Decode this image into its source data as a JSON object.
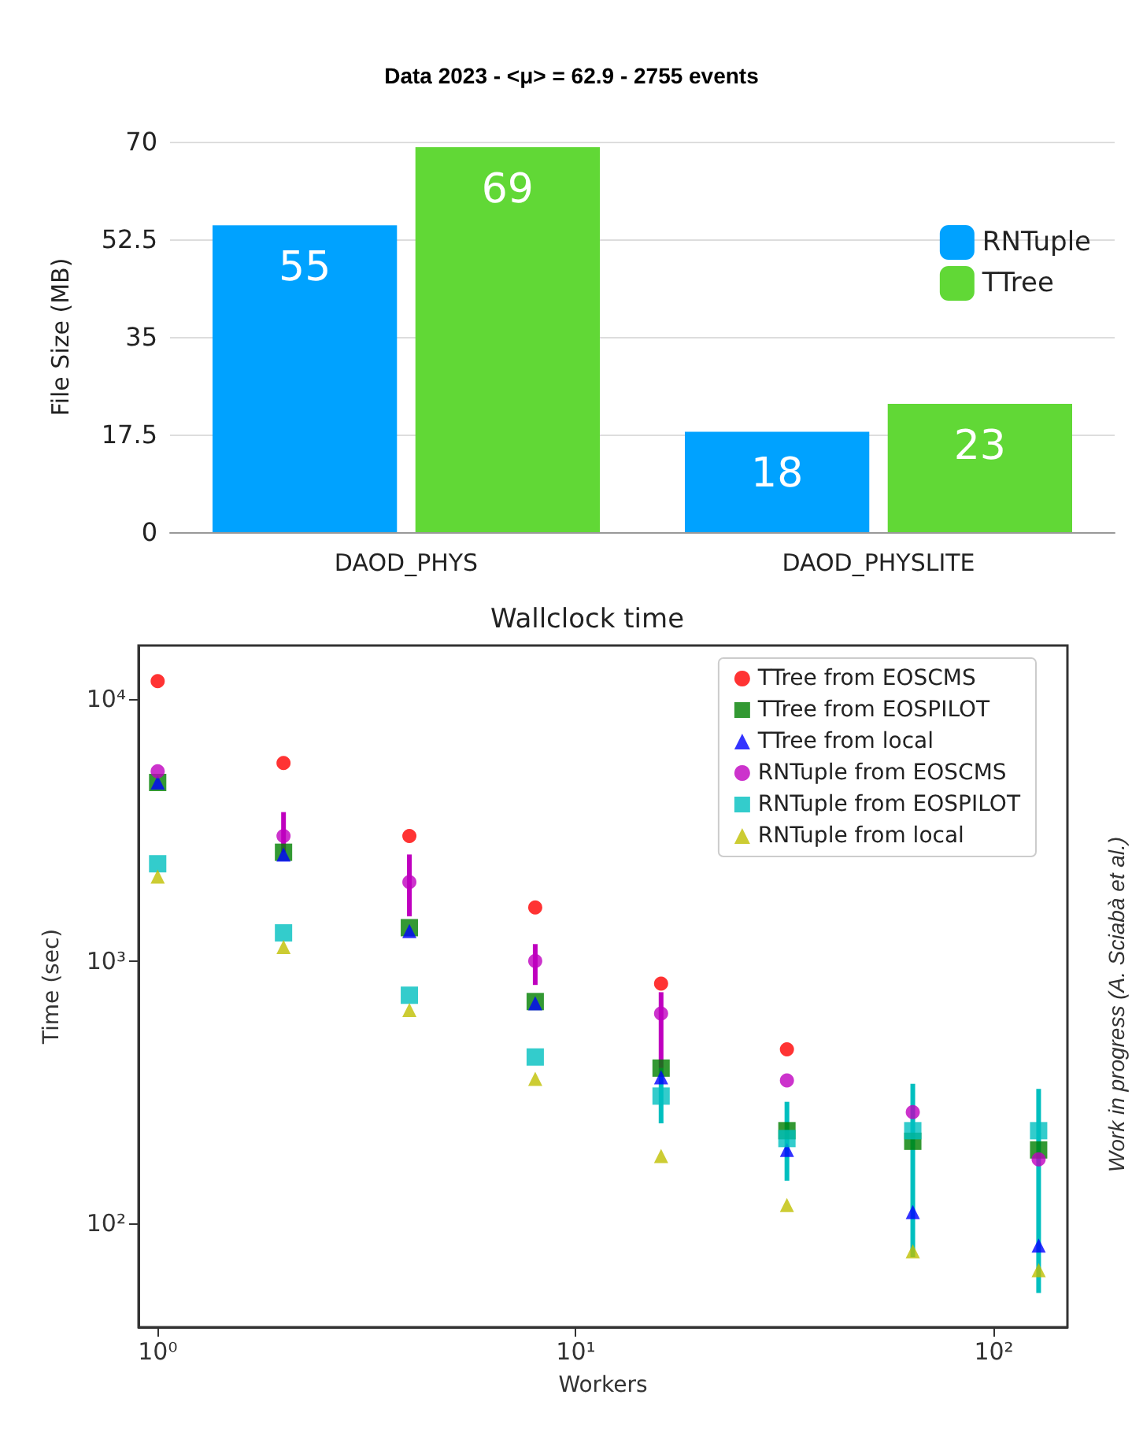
{
  "chart_data": [
    {
      "type": "bar",
      "title": "Data 2023 - <μ> = 62.9 - 2755 events",
      "ylabel": "File Size (MB)",
      "categories": [
        "DAOD_PHYS",
        "DAOD_PHYSLITE"
      ],
      "series": [
        {
          "name": "RNTuple",
          "color": "#00a2ff",
          "values": [
            55,
            18
          ]
        },
        {
          "name": "TTree",
          "color": "#61d836",
          "values": [
            69,
            23
          ]
        }
      ],
      "ylim": [
        0,
        70
      ],
      "yticks": [
        0,
        17.5,
        35,
        52.5,
        70
      ],
      "grid": "y",
      "legend": "right",
      "data_labels": true
    },
    {
      "type": "scatter",
      "title": "Wallclock time",
      "xlabel": "Workers",
      "ylabel": "Time (sec)",
      "log": "xy",
      "x": [
        1,
        2,
        4,
        8,
        16,
        32,
        64,
        128
      ],
      "xlim": [
        0.9,
        150
      ],
      "xticks": [
        {
          "value": 1,
          "label": "10⁰"
        },
        {
          "value": 10,
          "label": "10¹"
        },
        {
          "value": 100,
          "label": "10²"
        }
      ],
      "ylim": [
        40,
        16000
      ],
      "yticks": [
        {
          "value": 100,
          "label": "10²"
        },
        {
          "value": 1000,
          "label": "10³"
        },
        {
          "value": 10000,
          "label": "10⁴"
        }
      ],
      "legend": "top right",
      "grid": false,
      "series": [
        {
          "name": "TTree from EOSCMS",
          "color": "#ff0000",
          "marker": "circle",
          "values": [
            11700,
            5700,
            3000,
            1600,
            820,
            460,
            null,
            null
          ]
        },
        {
          "name": "TTree from EOSPILOT",
          "color": "#007f00",
          "marker": "square",
          "values": [
            4800,
            2600,
            1340,
            700,
            390,
            225,
            205,
            190
          ]
        },
        {
          "name": "TTree from local",
          "color": "#0000ff",
          "marker": "triangle",
          "values": [
            4800,
            2550,
            1300,
            690,
            360,
            190,
            110,
            82
          ]
        },
        {
          "name": "RNTuple from EOSCMS",
          "color": "#bf00bf",
          "marker": "circle",
          "values": [
            5300,
            3000,
            2000,
            1000,
            630,
            350,
            265,
            175
          ],
          "errors": [
            null,
            [
              2600,
              3700
            ],
            [
              1480,
              2550
            ],
            [
              810,
              1160
            ],
            [
              390,
              760
            ],
            null,
            null,
            null
          ]
        },
        {
          "name": "RNTuple from EOSPILOT",
          "color": "#00bfbf",
          "marker": "square",
          "values": [
            2350,
            1280,
            740,
            430,
            305,
            210,
            225,
            225
          ],
          "errors": [
            null,
            null,
            null,
            null,
            [
              240,
              390
            ],
            [
              145,
              290
            ],
            [
              74,
              340
            ],
            [
              54,
              325
            ]
          ]
        },
        {
          "name": "RNTuple from local",
          "color": "#bfbf00",
          "marker": "triangle",
          "values": [
            2100,
            1130,
            650,
            355,
            180,
            117,
            78,
            66
          ]
        }
      ],
      "annotations": [
        "Work in progress (A. Sciabà et al.)"
      ]
    }
  ]
}
